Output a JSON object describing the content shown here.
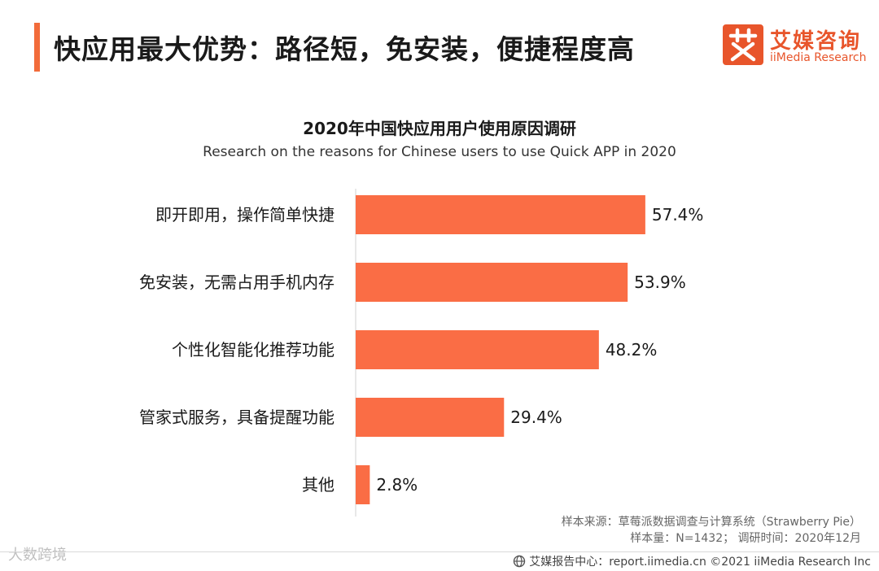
{
  "header": {
    "title": "快应用最大优势：路径短，免安装，便捷程度高"
  },
  "logo": {
    "name_cn": "艾媒咨询",
    "name_en": "iiMedia Research",
    "mark_icon": "iimedia-logo-mark"
  },
  "chart_data": {
    "type": "bar",
    "orientation": "horizontal",
    "title": "2020年中国快应用用户使用原因调研",
    "subtitle": "Research on the reasons for Chinese users to use Quick APP in 2020",
    "categories": [
      "即开即用，操作简单快捷",
      "免安装，无需占用手机内存",
      "个性化智能化推荐功能",
      "管家式服务，具备提醒功能",
      "其他"
    ],
    "values": [
      57.4,
      53.9,
      48.2,
      29.4,
      2.8
    ],
    "labels": [
      "57.4%",
      "53.9%",
      "48.2%",
      "29.4%",
      "2.8%"
    ],
    "unit": "%",
    "xlim": [
      0,
      100
    ],
    "bar_color": "#fa6d45",
    "axis_color": "#d0d0d0",
    "grid": false
  },
  "notes": {
    "source": "样本来源：草莓派数据调查与计算系统（Strawberry Pie）",
    "sample": "样本量：N=1432；  调研时间：2020年12月"
  },
  "watermark": {
    "text": "大数跨境"
  },
  "footer": {
    "icon": "globe-icon",
    "text": "艾媒报告中心：report.iimedia.cn   ©2021  iiMedia Research  Inc"
  },
  "colors": {
    "accent": "#f26b3a",
    "brand": "#e8552b"
  }
}
